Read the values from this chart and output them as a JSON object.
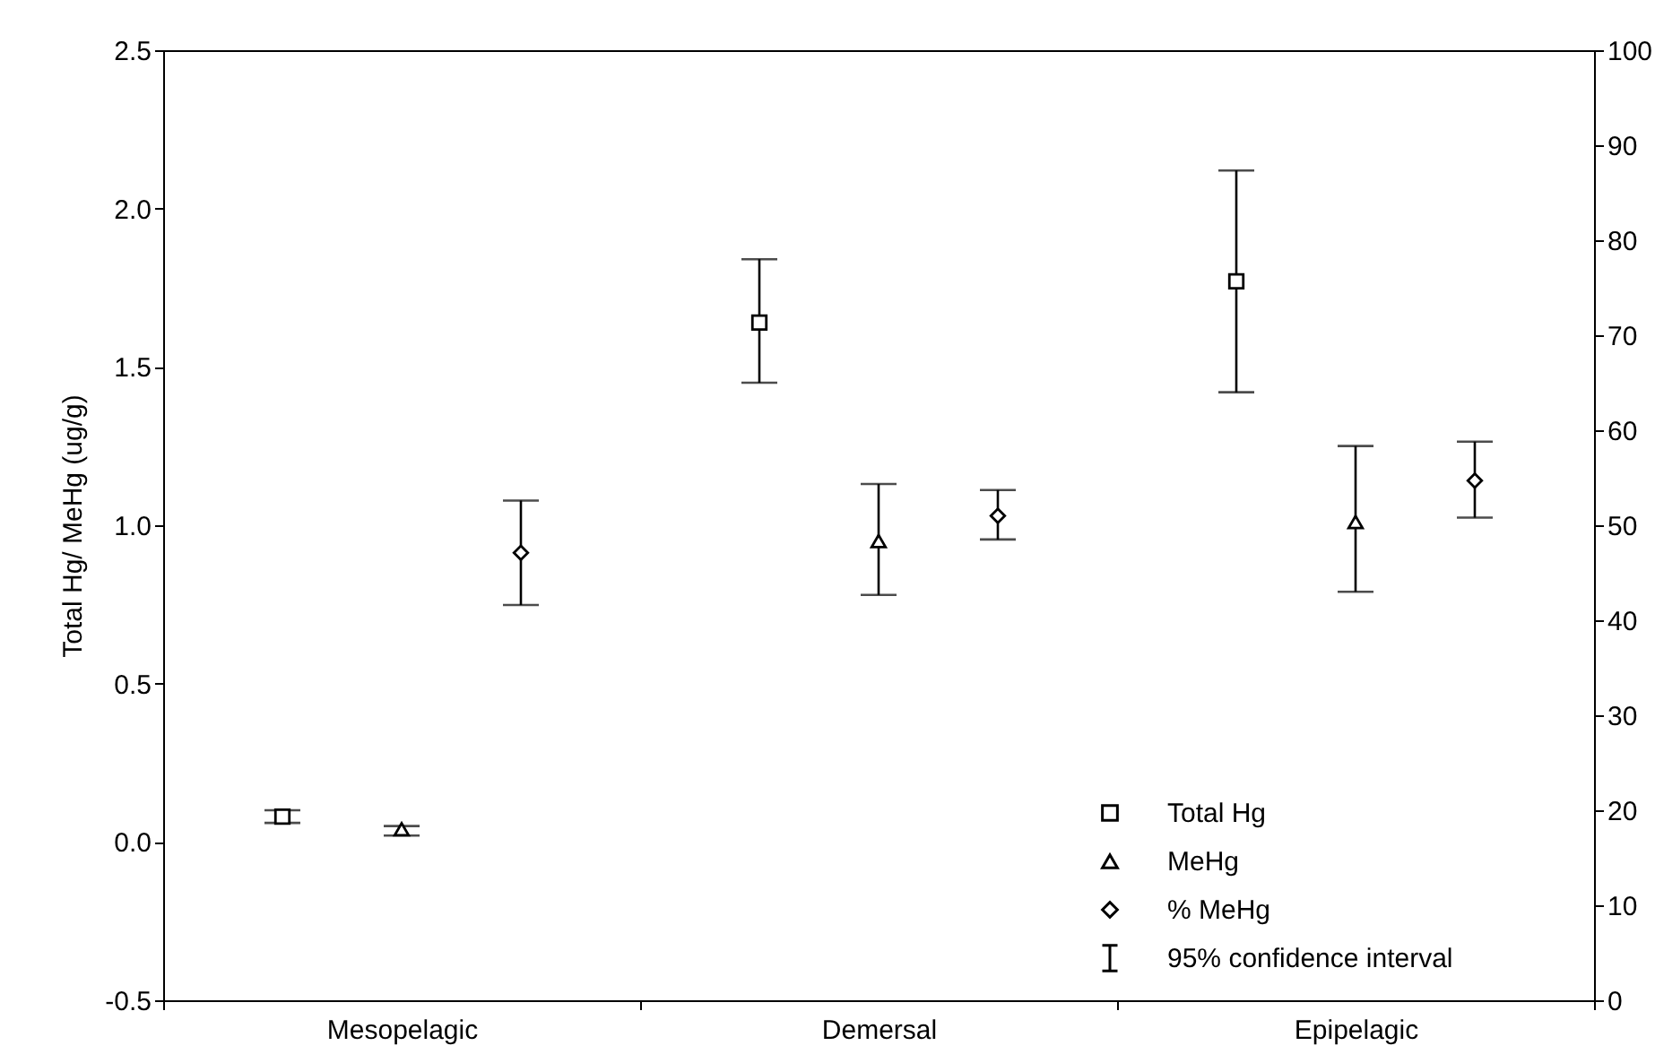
{
  "chart_data": {
    "type": "scatter",
    "ylabel": "Total Hg/ MeHg (ug/g)",
    "categories": [
      "Mesopelagic",
      "Demersal",
      "Epipelagic"
    ],
    "series": [
      {
        "name": "Total Hg",
        "color": "#000000",
        "marker": "square",
        "values": [
          0.08,
          1.64,
          1.77
        ],
        "errors": [
          [
            0.06,
            0.1
          ],
          [
            1.45,
            1.84
          ],
          [
            1.42,
            2.12
          ]
        ]
      },
      {
        "name": "MeHg",
        "color": "#000000",
        "marker": "triangle",
        "values": [
          0.04,
          0.95,
          1.01
        ],
        "errors": [
          [
            0.02,
            0.05
          ],
          [
            0.78,
            1.13
          ],
          [
            0.79,
            1.25
          ]
        ]
      },
      {
        "name": "% MeHg",
        "color": "#000000",
        "marker": "diamond",
        "axis": "y2",
        "values": [
          47.1,
          51.0,
          54.7
        ],
        "errors": [
          [
            41.6,
            52.6
          ],
          [
            48.5,
            53.7
          ],
          [
            50.8,
            58.8
          ]
        ]
      }
    ],
    "ylim": [
      -0.5,
      2.5
    ],
    "yticks": [
      {
        "value": -0.5,
        "label": "-0.5"
      },
      {
        "value": 0,
        "label": "0.0"
      },
      0.5,
      {
        "value": 1,
        "label": "1.0"
      },
      1.5,
      {
        "value": 2,
        "label": "2.0"
      },
      2.5
    ],
    "y2lim": [
      0,
      100
    ],
    "y2ticks": [
      0,
      10,
      20,
      30,
      40,
      50,
      60,
      70,
      80,
      90,
      100
    ],
    "legend": "bottom right",
    "annotations": [
      "95% confidence interval"
    ]
  }
}
